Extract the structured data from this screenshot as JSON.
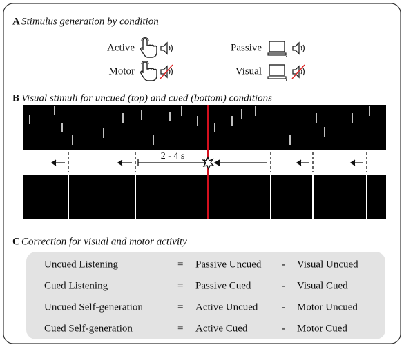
{
  "panel_a": {
    "letter": "A",
    "title": "Stimulus generation by condition",
    "conditions": [
      "Active",
      "Passive",
      "Motor",
      "Visual"
    ]
  },
  "panel_b": {
    "letter": "B",
    "title": "Visual stimuli for uncued (top) and cued (bottom) conditions",
    "interval_label": "2 - 4 s"
  },
  "panel_c": {
    "letter": "C",
    "title": "Correction for visual and motor activity",
    "rows": [
      [
        "Uncued Listening",
        "=",
        "Passive Uncued",
        "-",
        "Visual Uncued"
      ],
      [
        "Cued Listening",
        "=",
        "Passive Cued",
        "-",
        "Visual Cued"
      ],
      [
        "Uncued Self-generation",
        "=",
        "Active Uncued",
        "-",
        "Motor Uncued"
      ],
      [
        "Cued Self-generation",
        "=",
        "Active Cued",
        "-",
        "Motor Cued"
      ]
    ]
  }
}
